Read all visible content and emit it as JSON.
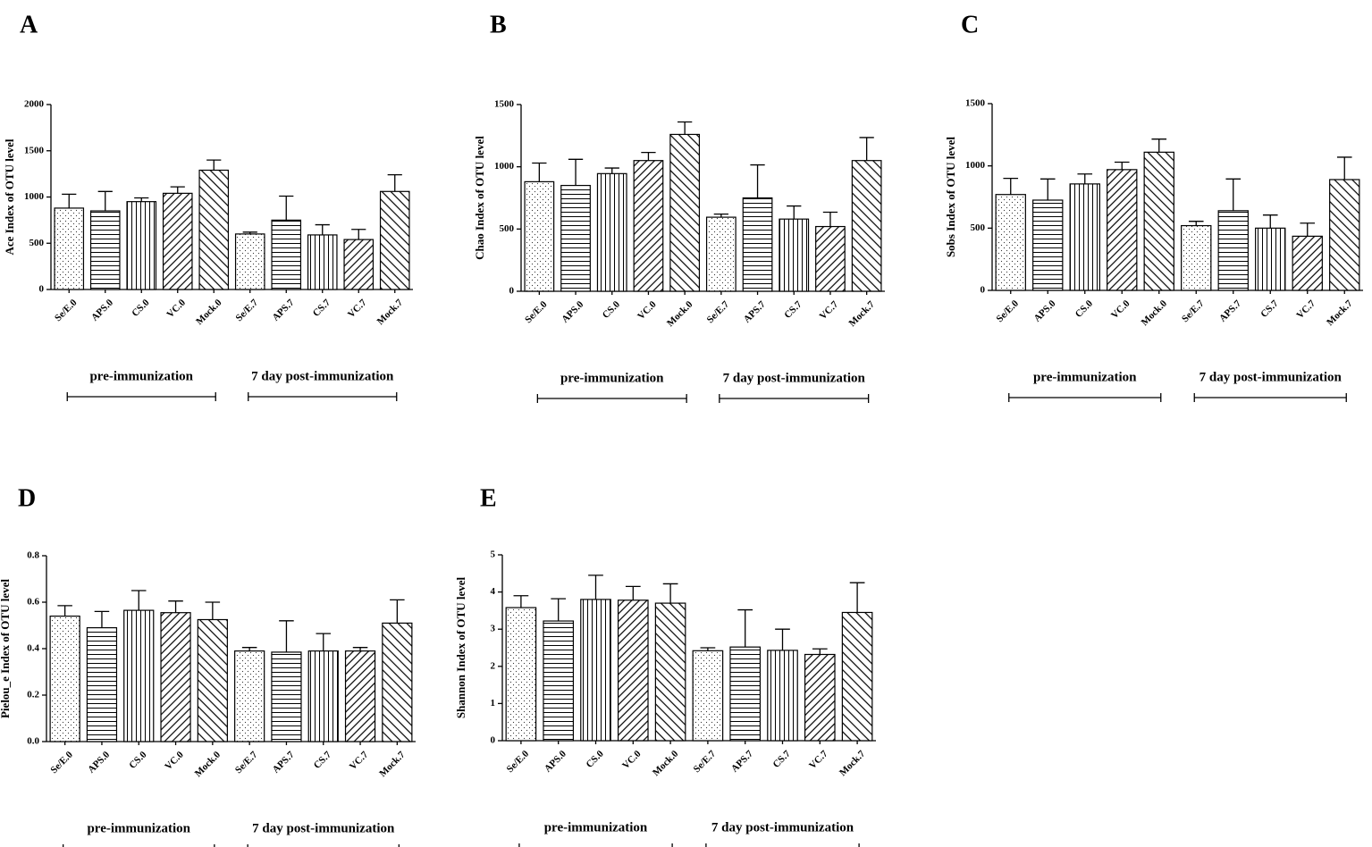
{
  "chart_data": [
    {
      "type": "bar",
      "panel": "A",
      "y_label": "Ace Index of OTU level",
      "categories": [
        "Se/E.0",
        "APS.0",
        "CS.0",
        "VC.0",
        "Mock.0",
        "Se/E.7",
        "APS.7",
        "CS.7",
        "VC.7",
        "Mock.7"
      ],
      "values": [
        880,
        850,
        950,
        1040,
        1290,
        600,
        750,
        590,
        540,
        1060
      ],
      "errors": [
        150,
        210,
        40,
        70,
        110,
        20,
        260,
        110,
        110,
        180
      ],
      "ylim": [
        0,
        2000
      ],
      "yticks": [
        0,
        500,
        1000,
        1500,
        2000
      ],
      "groups": [
        "pre-immunization",
        "7 day post-immunization"
      ]
    },
    {
      "type": "bar",
      "panel": "B",
      "y_label": "Chao Index of OTU level",
      "categories": [
        "Se/E.0",
        "APS.0",
        "CS.0",
        "VC.0",
        "Mock.0",
        "Se/E.7",
        "APS.7",
        "CS.7",
        "VC.7",
        "Mock.7"
      ],
      "values": [
        880,
        850,
        945,
        1050,
        1260,
        595,
        750,
        580,
        520,
        1050
      ],
      "errors": [
        150,
        210,
        45,
        65,
        100,
        25,
        265,
        105,
        115,
        185
      ],
      "ylim": [
        0,
        1500
      ],
      "yticks": [
        0,
        500,
        1000,
        1500
      ],
      "groups": [
        "pre-immunization",
        "7 day post-immunization"
      ]
    },
    {
      "type": "bar",
      "panel": "C",
      "y_label": "Sobs Index of OTU level",
      "categories": [
        "Se/E.0",
        "APS.0",
        "CS.0",
        "VC.0",
        "Mock.0",
        "Se/E.7",
        "APS.7",
        "CS.7",
        "VC.7",
        "Mock.7"
      ],
      "values": [
        770,
        725,
        855,
        970,
        1110,
        520,
        640,
        500,
        435,
        890
      ],
      "errors": [
        130,
        170,
        80,
        60,
        105,
        35,
        255,
        105,
        105,
        180
      ],
      "ylim": [
        0,
        1500
      ],
      "yticks": [
        0,
        500,
        1000,
        1500
      ],
      "groups": [
        "pre-immunization",
        "7 day post-immunization"
      ]
    },
    {
      "type": "bar",
      "panel": "D",
      "y_label": "Pielou_e Index of OTU level",
      "categories": [
        "Se/E.0",
        "APS.0",
        "CS.0",
        "VC.0",
        "Mock.0",
        "Se/E.7",
        "APS.7",
        "CS.7",
        "VC.7",
        "Mock.7"
      ],
      "values": [
        0.54,
        0.49,
        0.565,
        0.555,
        0.525,
        0.39,
        0.385,
        0.39,
        0.39,
        0.51
      ],
      "errors": [
        0.045,
        0.07,
        0.085,
        0.05,
        0.075,
        0.015,
        0.135,
        0.075,
        0.015,
        0.1
      ],
      "ylim": [
        0,
        0.8
      ],
      "yticks": [
        {
          "value": 0,
          "label": "0.0"
        },
        0.2,
        0.4,
        0.6,
        0.8
      ],
      "groups": [
        "pre-immunization",
        "7 day post-immunization"
      ]
    },
    {
      "type": "bar",
      "panel": "E",
      "y_label": "Shannon Index of OTU level",
      "categories": [
        "Se/E.0",
        "APS.0",
        "CS.0",
        "VC.0",
        "Mock.0",
        "Se/E.7",
        "APS.7",
        "CS.7",
        "VC.7",
        "Mock.7"
      ],
      "values": [
        3.58,
        3.22,
        3.8,
        3.78,
        3.7,
        2.42,
        2.52,
        2.43,
        2.32,
        3.45
      ],
      "errors": [
        0.32,
        0.6,
        0.65,
        0.37,
        0.52,
        0.08,
        1.0,
        0.57,
        0.15,
        0.8
      ],
      "ylim": [
        0,
        5
      ],
      "yticks": [
        0,
        1,
        2,
        3,
        4,
        5
      ],
      "groups": [
        "pre-immunization",
        "7 day post-immunization"
      ]
    }
  ]
}
